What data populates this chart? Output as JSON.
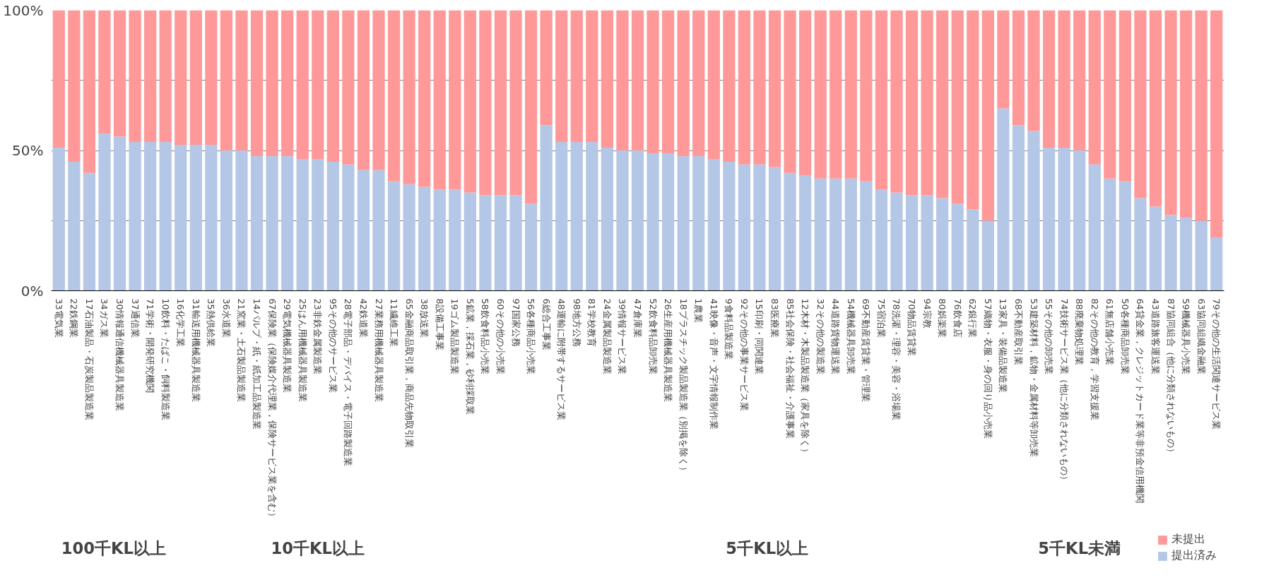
{
  "chart_data": {
    "type": "bar",
    "stacked": true,
    "categories": [
      "33電気業",
      "22鉄鋼業",
      "17石油製品・石炭製品製造業",
      "34ガス業",
      "30情報通信機械器具製造業",
      "37通信業",
      "71学術・開発研究機関",
      "10飲料・たばこ・飼料製造業",
      "16化学工業",
      "31輸送用機械器具製造業",
      "35熱供給業",
      "36水道業",
      "21窯業・土石製品製造業",
      "14パルプ・紙・紙加工品製造業",
      "67保険業（保険媒介代理業，保険サービス業を含む）",
      "29電気機械器具製造業",
      "25はん用機械器具製造業",
      "23非鉄金属製造業",
      "95その他のサービス業",
      "28電子部品・デバイス・電子回路製造業",
      "42鉄道業",
      "27業務用機械器具製造業",
      "11繊維工業",
      "65金融商品取引業，商品先物取引業",
      "38放送業",
      "8設備工事業",
      "19ゴム製品製造業",
      "5鉱業，採石業，砂利採取業",
      "58飲食料品小売業",
      "60その他の小売業",
      "97国家公務",
      "56各種商品小売業",
      "6総合工事業",
      "48運輸に附帯するサービス業",
      "98地方公務",
      "81学校教育",
      "24金属製品製造業",
      "39情報サービス業",
      "47倉庫業",
      "52飲食料品卸売業",
      "26生産用機械器具製造業",
      "18プラスチック製品製造業（別掲を除く）",
      "1農業",
      "41映像・音声・文字情報制作業",
      "9食料品製造業",
      "92その他の事業サービス業",
      "15印刷・同関連業",
      "83医療業",
      "85社会保険・社会福祉・介護事業",
      "12木材・木製品製造業（家具を除く）",
      "32その他の製造業",
      "44道路貨物運送業",
      "54機械器具卸売業",
      "69不動産賃貸業・管理業",
      "75宿泊業",
      "78洗濯・理容・美容・浴場業",
      "70物品賃貸業",
      "94宗教",
      "80娯楽業",
      "76飲食店",
      "62銀行業",
      "57織物・衣服・身の回り品小売業",
      "13家具・装備品製造業",
      "68不動産取引業",
      "53建築材料，鉱物・金属材料等卸売業",
      "55その他の卸売業",
      "74技術サービス業（他に分類されないもの）",
      "88廃棄物処理業",
      "82その他の教育，学習支援業",
      "61無店舗小売業",
      "50各種商品卸売業",
      "64貸金業，クレジットカード業等非預金信用機関",
      "43道路旅客運送業",
      "87協同組合（他に分類されないもの）",
      "59機械器具小売業",
      "63協同組織金融業",
      "79その他の生活関連サービス業"
    ],
    "series": [
      {
        "name": "提出済み",
        "color": "#b4c7e7",
        "values": [
          51,
          46,
          42,
          56,
          55,
          53,
          53,
          53,
          52,
          52,
          52,
          50,
          50,
          48,
          48,
          48,
          47,
          47,
          46,
          45,
          43,
          43,
          39,
          38,
          37,
          36,
          36,
          35,
          34,
          34,
          34,
          31,
          59,
          53,
          53,
          53,
          51,
          50,
          50,
          49,
          49,
          48,
          48,
          47,
          46,
          45,
          45,
          44,
          42,
          41,
          40,
          40,
          40,
          39,
          36,
          35,
          34,
          34,
          33,
          31,
          29,
          25,
          65,
          59,
          57,
          51,
          51,
          50,
          45,
          40,
          39,
          33,
          30,
          27,
          26,
          25,
          19
        ]
      },
      {
        "name": "未提出",
        "color": "#ff9999",
        "values": [
          49,
          54,
          58,
          44,
          45,
          47,
          47,
          47,
          48,
          48,
          48,
          50,
          50,
          52,
          52,
          52,
          53,
          53,
          54,
          55,
          57,
          57,
          61,
          62,
          63,
          64,
          64,
          65,
          66,
          66,
          66,
          69,
          41,
          47,
          47,
          47,
          49,
          50,
          50,
          51,
          51,
          52,
          52,
          53,
          54,
          55,
          55,
          56,
          58,
          59,
          60,
          60,
          60,
          61,
          64,
          65,
          66,
          66,
          67,
          69,
          71,
          75,
          35,
          41,
          43,
          49,
          49,
          50,
          55,
          60,
          61,
          67,
          70,
          73,
          74,
          75,
          81
        ]
      }
    ],
    "ylim": [
      0,
      100
    ],
    "yticks": [
      {
        "value": 0,
        "label": "0%"
      },
      {
        "value": 25,
        "label": null
      },
      {
        "value": 50,
        "label": "50%"
      },
      {
        "value": 75,
        "label": null
      },
      {
        "value": 100,
        "label": "100%"
      }
    ],
    "grid": "y",
    "legend": "bottom right",
    "annotations": [
      "100千KL以上",
      "10千KL以上",
      "5千KL以上",
      "5千KL未満"
    ]
  }
}
